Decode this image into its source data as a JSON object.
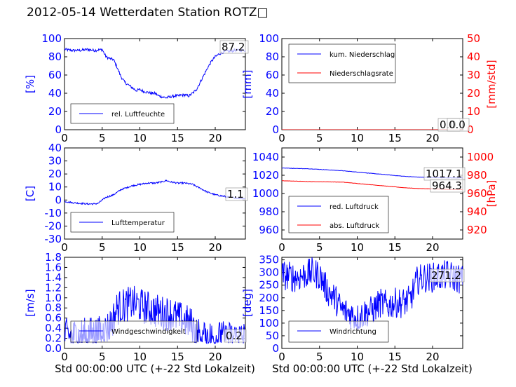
{
  "figure": {
    "title": "2012-05-14 Wetterdaten Station ROTZ□"
  },
  "chart_data": [
    {
      "id": "humidity",
      "type": "line",
      "xlim": [
        0,
        24
      ],
      "xticks": [
        0,
        5,
        10,
        15,
        20
      ],
      "ylim": [
        0,
        100
      ],
      "yticks": [
        0,
        20,
        40,
        60,
        80,
        100
      ],
      "ylabel": "[%]",
      "xlabel": "",
      "annotations": [
        "87.2"
      ],
      "legend": "lower-left",
      "series": [
        {
          "name": "rel. Luftfeuchte",
          "color": "#0000ff",
          "x": [
            0,
            1,
            2,
            3,
            4,
            5,
            5.5,
            6,
            6.5,
            7,
            7.5,
            8,
            8.5,
            9,
            9.5,
            10,
            10.5,
            11,
            11.5,
            12,
            12.5,
            13,
            13.5,
            14,
            14.5,
            15,
            15.5,
            16,
            16.5,
            17,
            17.5,
            18,
            18.5,
            19,
            19.5,
            20,
            20.5,
            21,
            21.5,
            22,
            22.5,
            23,
            23.5,
            24
          ],
          "y": [
            88,
            87,
            87,
            88,
            87,
            88,
            80,
            78,
            77,
            68,
            58,
            52,
            49,
            46,
            43,
            44,
            42,
            41,
            40,
            40,
            37,
            36,
            35,
            36,
            37,
            37,
            38,
            38,
            37,
            40,
            44,
            52,
            60,
            68,
            75,
            80,
            83,
            85,
            86,
            86,
            87,
            87,
            87,
            87.2
          ],
          "noise": 1.5
        }
      ]
    },
    {
      "id": "precip",
      "type": "line",
      "xlim": [
        0,
        24
      ],
      "xticks": [
        0,
        5,
        10,
        15,
        20
      ],
      "ylim": [
        0,
        100
      ],
      "yticks": [
        0,
        20,
        40,
        60,
        80,
        100
      ],
      "ylabel": "[mm]",
      "y2lim": [
        0,
        50
      ],
      "y2ticks": [
        0,
        10,
        20,
        30,
        40,
        50
      ],
      "y2label": "[mm/std]",
      "xlabel": "",
      "annotations": [
        "0.0",
        "0.0"
      ],
      "legend": "top-left",
      "series": [
        {
          "name": "kum. Niederschlag",
          "color": "#0000ff",
          "axis": "left",
          "x": [
            0,
            24
          ],
          "y": [
            0,
            0
          ],
          "noise": 0
        },
        {
          "name": "Niederschlagsrate",
          "color": "#ff0000",
          "axis": "right",
          "x": [
            0,
            24
          ],
          "y": [
            0,
            0
          ],
          "noise": 0
        }
      ]
    },
    {
      "id": "temperature",
      "type": "line",
      "xlim": [
        0,
        24
      ],
      "xticks": [
        0,
        5,
        10,
        15,
        20
      ],
      "ylim": [
        -30,
        40
      ],
      "yticks": [
        -30,
        -20,
        -10,
        0,
        10,
        20,
        30,
        40
      ],
      "ylabel": "[C]",
      "xlabel": "",
      "annotations": [
        "1.1"
      ],
      "legend": "lower-left",
      "series": [
        {
          "name": "Lufttemperatur",
          "color": "#0000ff",
          "x": [
            0,
            1,
            2,
            3,
            4,
            4.5,
            5,
            5.5,
            6,
            6.5,
            7,
            7.5,
            8,
            8.5,
            9,
            10,
            11,
            12,
            13,
            13.5,
            14,
            15,
            16,
            17,
            18,
            19,
            20,
            21,
            22,
            23,
            24
          ],
          "y": [
            -1,
            -2,
            -2.5,
            -3,
            -3,
            -2.5,
            0,
            2,
            3,
            4,
            6,
            8,
            9,
            10,
            11,
            12,
            13,
            13,
            14,
            15,
            14,
            13,
            13,
            12,
            9,
            6,
            4,
            3,
            2,
            1.5,
            1.1
          ],
          "noise": 0.6
        }
      ]
    },
    {
      "id": "pressure",
      "type": "line",
      "xlim": [
        0,
        24
      ],
      "xticks": [
        0,
        5,
        10,
        15,
        20
      ],
      "ylim": [
        950,
        1050
      ],
      "yticks": [
        960,
        980,
        1000,
        1020,
        1040
      ],
      "ylabel": "",
      "y2lim": [
        910,
        1010
      ],
      "y2ticks": [
        920,
        940,
        960,
        980,
        1000
      ],
      "y2label": "[hPa]",
      "xlabel": "",
      "annotations": [
        "1017.1",
        "964.3"
      ],
      "legend": "lower-left",
      "series": [
        {
          "name": "red. Luftdruck",
          "color": "#0000ff",
          "axis": "left",
          "x": [
            0,
            2,
            4,
            6,
            8,
            10,
            12,
            14,
            16,
            18,
            20,
            22,
            24
          ],
          "y": [
            1028,
            1027.5,
            1027,
            1026,
            1025,
            1023.5,
            1022,
            1020.5,
            1019,
            1018,
            1017.5,
            1017.2,
            1017.1
          ],
          "noise": 0.2
        },
        {
          "name": "abs. Luftdruck",
          "color": "#ff0000",
          "axis": "right",
          "x": [
            0,
            2,
            4,
            6,
            8,
            10,
            12,
            14,
            16,
            18,
            20,
            22,
            24
          ],
          "y": [
            974,
            973.5,
            973,
            972.8,
            972.5,
            971,
            969.5,
            968,
            966.5,
            965.5,
            965,
            964.5,
            964.3
          ],
          "noise": 0.15
        }
      ]
    },
    {
      "id": "wind",
      "type": "line",
      "xlim": [
        0,
        24
      ],
      "xticks": [
        0,
        5,
        10,
        15,
        20
      ],
      "ylim": [
        0,
        1.8
      ],
      "yticks": [
        0.0,
        0.2,
        0.4,
        0.6,
        0.8,
        1.0,
        1.2,
        1.4,
        1.6,
        1.8
      ],
      "ylabel": "[m/s]",
      "xlabel": "Std 00:00:00 UTC (+-22 Std Lokalzeit)",
      "annotations": [
        "0.2"
      ],
      "legend": "lower-left",
      "series": [
        {
          "name": "Windgeschwindigkeit",
          "color": "#0000ff",
          "x": [
            0,
            2,
            4,
            5,
            6,
            6.5,
            7,
            8,
            9,
            10,
            11,
            12,
            13,
            14,
            15,
            16,
            17,
            17.5,
            18,
            20,
            22,
            24
          ],
          "y": [
            0.25,
            0.25,
            0.3,
            0.3,
            0.45,
            0.6,
            0.8,
            0.85,
            0.9,
            0.85,
            0.8,
            0.75,
            0.7,
            0.7,
            0.6,
            0.55,
            0.45,
            0.3,
            0.25,
            0.2,
            0.2,
            0.2
          ],
          "noise": 0.35
        }
      ]
    },
    {
      "id": "winddir",
      "type": "line",
      "xlim": [
        0,
        24
      ],
      "xticks": [
        0,
        5,
        10,
        15,
        20
      ],
      "ylim": [
        0,
        360
      ],
      "yticks": [
        0,
        50,
        100,
        150,
        200,
        250,
        300,
        350
      ],
      "ylabel": "[deg]",
      "xlabel": "Std 00:00:00 UTC (+-22 Std Lokalzeit)",
      "annotations": [
        "271.2"
      ],
      "legend": "lower-left",
      "series": [
        {
          "name": "Windrichtung",
          "color": "#0000ff",
          "x": [
            0,
            2,
            4,
            5,
            6,
            7,
            8,
            9,
            10,
            11,
            12,
            13,
            14,
            15,
            16,
            17,
            18,
            19,
            20,
            22,
            24
          ],
          "y": [
            290,
            280,
            300,
            290,
            230,
            200,
            150,
            140,
            120,
            140,
            150,
            180,
            170,
            180,
            180,
            190,
            270,
            280,
            280,
            290,
            271.2
          ],
          "noise": 60
        }
      ]
    }
  ]
}
